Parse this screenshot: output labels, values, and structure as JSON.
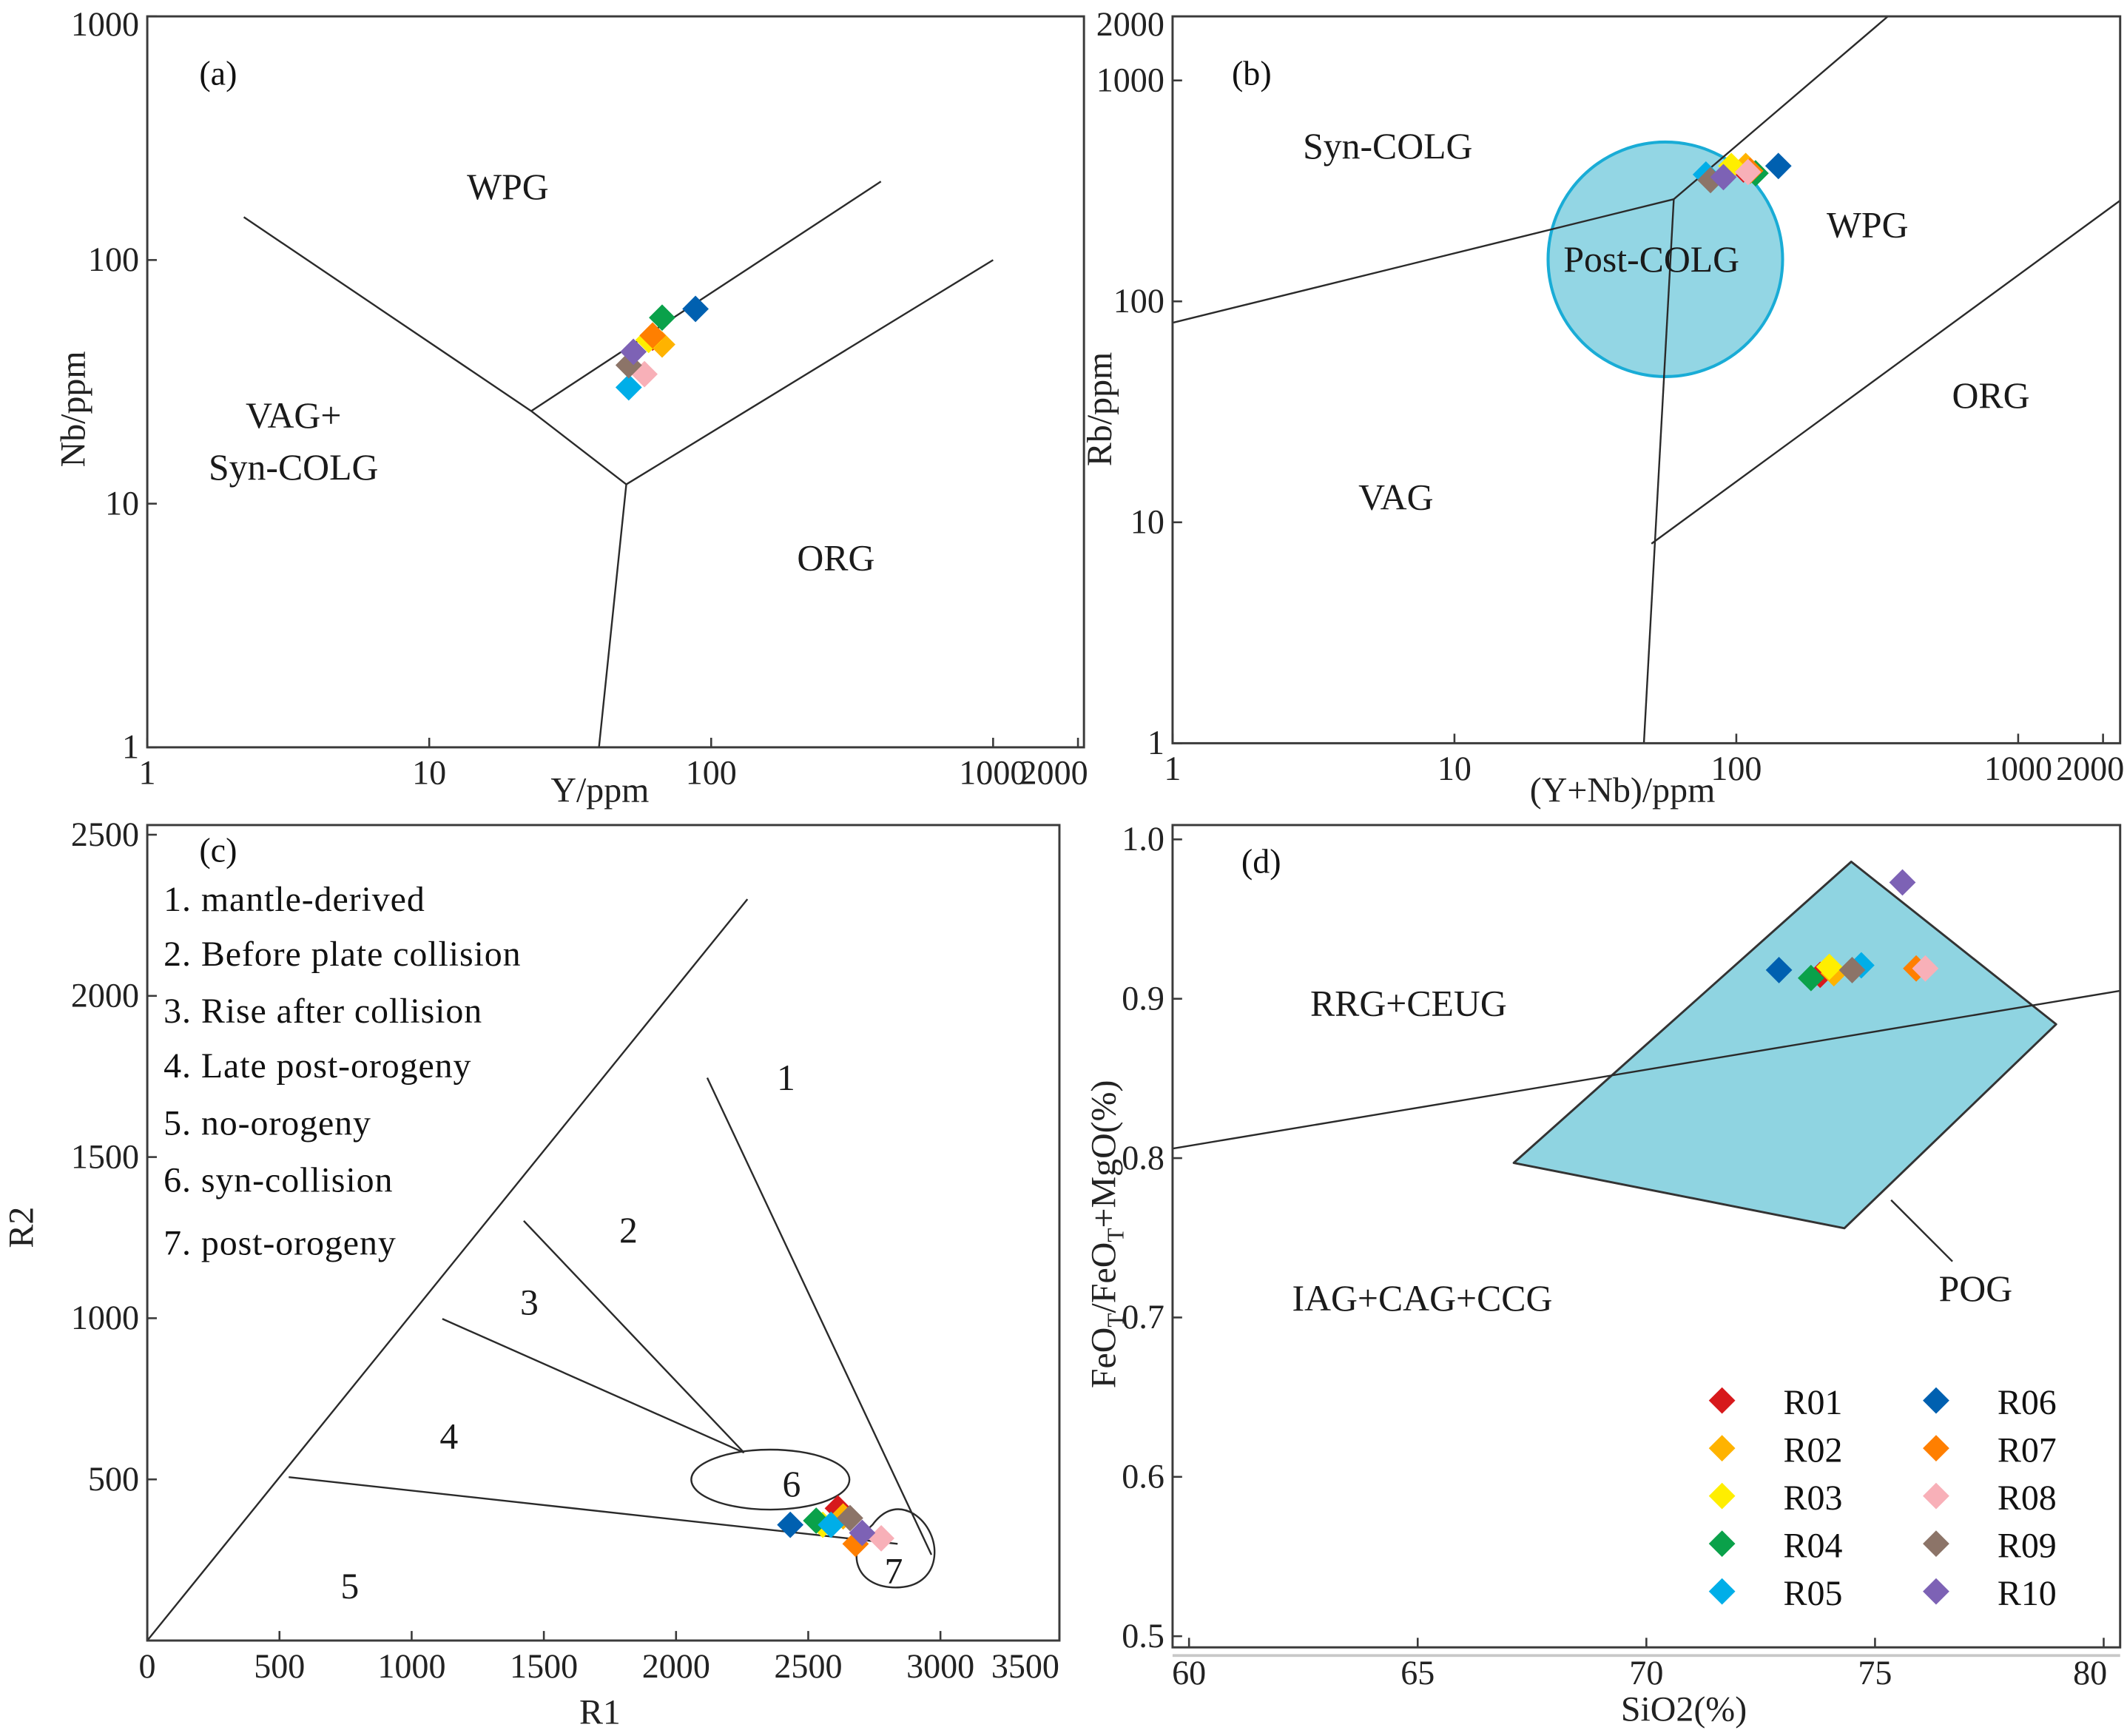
{
  "samples": [
    {
      "name": "R01",
      "color": "#d7191c"
    },
    {
      "name": "R02",
      "color": "#ffb300"
    },
    {
      "name": "R03",
      "color": "#ffee00"
    },
    {
      "name": "R04",
      "color": "#0aa14a"
    },
    {
      "name": "R05",
      "color": "#00aee8"
    },
    {
      "name": "R06",
      "color": "#0060b0"
    },
    {
      "name": "R07",
      "color": "#ff7f00"
    },
    {
      "name": "R08",
      "color": "#f8b0b8"
    },
    {
      "name": "R09",
      "color": "#8c7468"
    },
    {
      "name": "R10",
      "color": "#7d62b5"
    }
  ],
  "chart_data": [
    {
      "id": "a",
      "type": "scatter",
      "panel_label": "(a)",
      "xlabel": "Y/ppm",
      "ylabel": "Nb/ppm",
      "xscale": "log",
      "yscale": "log",
      "xlim": [
        1,
        2100
      ],
      "ylim": [
        1,
        1000
      ],
      "xticks": [
        {
          "v": 1,
          "label": "1"
        },
        {
          "v": 10,
          "label": "10"
        },
        {
          "v": 100,
          "label": "100"
        },
        {
          "v": 1000,
          "label": "1000"
        },
        {
          "v": 2000,
          "label": "2000"
        }
      ],
      "yticks": [
        {
          "v": 1,
          "label": "1"
        },
        {
          "v": 10,
          "label": "10"
        },
        {
          "v": 100,
          "label": "100"
        },
        {
          "v": 1000,
          "label": "1000"
        }
      ],
      "boundaries": [
        [
          [
            2.2,
            150
          ],
          [
            23,
            24
          ]
        ],
        [
          [
            23,
            24
          ],
          [
            400,
            210
          ]
        ],
        [
          [
            23,
            24
          ],
          [
            50,
            12
          ]
        ],
        [
          [
            50,
            12
          ],
          [
            1000,
            100
          ]
        ],
        [
          [
            50,
            12
          ],
          [
            40,
            1
          ]
        ]
      ],
      "regions": [
        {
          "lines": [
            "WPG"
          ],
          "x": 19,
          "y": 200
        },
        {
          "lines": [
            "VAG+",
            "Syn-COLG"
          ],
          "x": 3.3,
          "y": 18
        },
        {
          "lines": [
            "ORG"
          ],
          "x": 277,
          "y": 6
        }
      ],
      "points": [
        {
          "sample": "R01",
          "x": 62,
          "y": 48
        },
        {
          "sample": "R02",
          "x": 67,
          "y": 45
        },
        {
          "sample": "R03",
          "x": 60,
          "y": 47
        },
        {
          "sample": "R04",
          "x": 67,
          "y": 58
        },
        {
          "sample": "R05",
          "x": 51,
          "y": 30
        },
        {
          "sample": "R06",
          "x": 88,
          "y": 63
        },
        {
          "sample": "R07",
          "x": 62,
          "y": 49
        },
        {
          "sample": "R08",
          "x": 58,
          "y": 34
        },
        {
          "sample": "R09",
          "x": 51,
          "y": 37
        },
        {
          "sample": "R10",
          "x": 53,
          "y": 42
        }
      ]
    },
    {
      "id": "b",
      "type": "scatter",
      "panel_label": "(b)",
      "xlabel": "(Y+Nb)/ppm",
      "ylabel": "Rb/ppm",
      "xscale": "log",
      "yscale": "log",
      "xlim": [
        1,
        2300
      ],
      "ylim": [
        1,
        1950
      ],
      "xticks": [
        {
          "v": 1,
          "label": "1"
        },
        {
          "v": 10,
          "label": "10"
        },
        {
          "v": 100,
          "label": "100"
        },
        {
          "v": 1000,
          "label": "1000"
        },
        {
          "v": 2000,
          "label": "2000"
        }
      ],
      "yticks": [
        {
          "v": 1,
          "label": "1"
        },
        {
          "v": 10,
          "label": "10"
        },
        {
          "v": 100,
          "label": "100"
        },
        {
          "v": 1000,
          "label": "1000"
        },
        {
          "v": 2000,
          "label": "2000"
        }
      ],
      "field_circle": {
        "label": "Post-COLG",
        "x": 56,
        "y": 155
      },
      "boundaries": [
        [
          [
            1,
            80
          ],
          [
            60,
            290
          ]
        ],
        [
          [
            60,
            290
          ],
          [
            345,
            1950
          ]
        ],
        [
          [
            60,
            290
          ],
          [
            47,
            1
          ]
        ],
        [
          [
            50,
            8
          ],
          [
            2300,
            286
          ]
        ]
      ],
      "regions": [
        {
          "lines": [
            "Syn-COLG"
          ],
          "x": 5.8,
          "y": 505
        },
        {
          "lines": [
            "Post-COLG"
          ],
          "x": 50,
          "y": 155
        },
        {
          "lines": [
            "WPG"
          ],
          "x": 292,
          "y": 222
        },
        {
          "lines": [
            "VAG"
          ],
          "x": 6.2,
          "y": 13
        },
        {
          "lines": [
            "ORG"
          ],
          "x": 800,
          "y": 37.5
        }
      ],
      "points": [
        {
          "sample": "R01",
          "x": 106,
          "y": 395
        },
        {
          "sample": "R02",
          "x": 108,
          "y": 410
        },
        {
          "sample": "R03",
          "x": 96,
          "y": 410
        },
        {
          "sample": "R04",
          "x": 117,
          "y": 380
        },
        {
          "sample": "R05",
          "x": 78,
          "y": 375
        },
        {
          "sample": "R06",
          "x": 141,
          "y": 410
        },
        {
          "sample": "R07",
          "x": 112,
          "y": 390
        },
        {
          "sample": "R08",
          "x": 110,
          "y": 385
        },
        {
          "sample": "R09",
          "x": 81,
          "y": 354
        },
        {
          "sample": "R10",
          "x": 90,
          "y": 365
        }
      ]
    },
    {
      "id": "c",
      "type": "scatter",
      "panel_label": "(c)",
      "xlabel": "R1",
      "ylabel": "R2",
      "xscale": "linear",
      "yscale": "linear",
      "xlim": [
        0,
        3450
      ],
      "ylim": [
        0,
        2530
      ],
      "xticks": [
        {
          "v": 0,
          "label": "0"
        },
        {
          "v": 500,
          "label": "500"
        },
        {
          "v": 1000,
          "label": "1000"
        },
        {
          "v": 1500,
          "label": "1500"
        },
        {
          "v": 2000,
          "label": "2000"
        },
        {
          "v": 2500,
          "label": "2500"
        },
        {
          "v": 3000,
          "label": "3000"
        },
        {
          "v": 3500,
          "label": "3500"
        }
      ],
      "yticks": [
        {
          "v": 500,
          "label": "500"
        },
        {
          "v": 1000,
          "label": "1000"
        },
        {
          "v": 1500,
          "label": "1500"
        },
        {
          "v": 2000,
          "label": "2000"
        },
        {
          "v": 2500,
          "label": "2500"
        }
      ],
      "legend": [
        "1. mantle-derived",
        "2. Before plate collision",
        "3. Rise after collision",
        "4. Late post-orogeny",
        "5. no-orogeny",
        "6. syn-collision",
        "7. post-orogeny"
      ],
      "boundaries": [
        [
          [
            0,
            0
          ],
          [
            2270,
            2300
          ]
        ],
        [
          [
            1424,
            1302
          ],
          [
            2257,
            583
          ]
        ],
        [
          [
            1116,
            998
          ],
          [
            2257,
            583
          ]
        ],
        [
          [
            535,
            507
          ],
          [
            2838,
            300
          ]
        ],
        [
          [
            2118,
            1746
          ],
          [
            2966,
            266
          ]
        ]
      ],
      "regions": [
        {
          "lines": [
            "1"
          ],
          "x": 2416,
          "y": 1746
        },
        {
          "lines": [
            "2"
          ],
          "x": 1820,
          "y": 1273
        },
        {
          "lines": [
            "3"
          ],
          "x": 1445,
          "y": 1049
        },
        {
          "lines": [
            "4"
          ],
          "x": 1141,
          "y": 634
        },
        {
          "lines": [
            "5"
          ],
          "x": 766,
          "y": 169
        },
        {
          "lines": [
            "6"
          ],
          "x": 2437,
          "y": 486
        },
        {
          "lines": [
            "7"
          ],
          "x": 2823,
          "y": 216
        }
      ],
      "points": [
        {
          "sample": "R01",
          "x": 2612,
          "y": 410
        },
        {
          "sample": "R02",
          "x": 2632,
          "y": 385
        },
        {
          "sample": "R03",
          "x": 2555,
          "y": 359
        },
        {
          "sample": "R04",
          "x": 2530,
          "y": 372
        },
        {
          "sample": "R05",
          "x": 2586,
          "y": 359
        },
        {
          "sample": "R06",
          "x": 2432,
          "y": 359
        },
        {
          "sample": "R07",
          "x": 2679,
          "y": 300
        },
        {
          "sample": "R08",
          "x": 2776,
          "y": 317
        },
        {
          "sample": "R09",
          "x": 2658,
          "y": 380
        },
        {
          "sample": "R10",
          "x": 2704,
          "y": 334
        }
      ]
    },
    {
      "id": "d",
      "type": "scatter",
      "panel_label": "(d)",
      "xlabel": "SiO2(%)",
      "ylabel": "FeOT/FeOT+MgO(%)",
      "xscale": "linear",
      "yscale": "linear",
      "xlim": [
        59.64,
        80.36
      ],
      "ylim": [
        0.493,
        1.009
      ],
      "xticks": [
        {
          "v": 60,
          "label": "60"
        },
        {
          "v": 65,
          "label": "65"
        },
        {
          "v": 70,
          "label": "70"
        },
        {
          "v": 75,
          "label": "75"
        },
        {
          "v": 80,
          "label": "80"
        }
      ],
      "yticks": [
        {
          "v": 0.5,
          "label": "0.5"
        },
        {
          "v": 0.6,
          "label": "0.6"
        },
        {
          "v": 0.7,
          "label": "0.7"
        },
        {
          "v": 0.8,
          "label": "0.8"
        },
        {
          "v": 0.9,
          "label": "0.9"
        },
        {
          "v": 1.0,
          "label": "1.0"
        }
      ],
      "field_polygon": [
        [
          67.1,
          0.797
        ],
        [
          74.48,
          0.986
        ],
        [
          78.96,
          0.884
        ],
        [
          74.33,
          0.756
        ]
      ],
      "boundaries": [
        [
          [
            59.64,
            0.806
          ],
          [
            80.36,
            0.905
          ]
        ]
      ],
      "regions": [
        {
          "lines": [
            "RRG+CEUG"
          ],
          "x": 64.8,
          "y": 0.897
        },
        {
          "lines": [
            "IAG+CAG+CCG"
          ],
          "x": 65.1,
          "y": 0.712
        },
        {
          "lines": [
            "POG"
          ],
          "x": 77.2,
          "y": 0.718
        }
      ],
      "points": [
        {
          "sample": "R01",
          "x": 73.8,
          "y": 0.915
        },
        {
          "sample": "R02",
          "x": 74.1,
          "y": 0.916
        },
        {
          "sample": "R03",
          "x": 74.0,
          "y": 0.92
        },
        {
          "sample": "R04",
          "x": 73.6,
          "y": 0.913
        },
        {
          "sample": "R05",
          "x": 74.7,
          "y": 0.921
        },
        {
          "sample": "R06",
          "x": 72.9,
          "y": 0.918
        },
        {
          "sample": "R07",
          "x": 75.9,
          "y": 0.919
        },
        {
          "sample": "R08",
          "x": 76.1,
          "y": 0.919
        },
        {
          "sample": "R09",
          "x": 74.5,
          "y": 0.918
        },
        {
          "sample": "R10",
          "x": 75.6,
          "y": 0.973
        }
      ]
    }
  ]
}
